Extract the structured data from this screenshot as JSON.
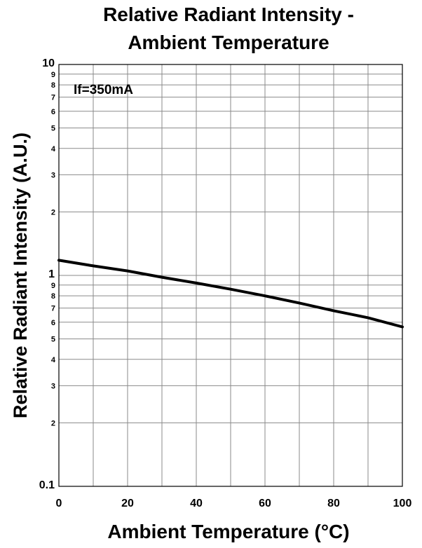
{
  "chart_data": {
    "type": "line",
    "title": [
      "Relative Radiant Intensity -",
      "Ambient Temperature"
    ],
    "xlabel": "Ambient Temperature (°C)",
    "ylabel": "Relative Radiant Intensity (A.U.)",
    "annotation": "If=350mA",
    "xlim": [
      0,
      100
    ],
    "ylim": [
      0.1,
      10
    ],
    "yscale": "log",
    "grid": true,
    "x_ticks": [
      0,
      20,
      40,
      60,
      80,
      100
    ],
    "x_grid": [
      0,
      10,
      20,
      30,
      40,
      50,
      60,
      70,
      80,
      90,
      100
    ],
    "y_major_ticks": [
      {
        "value": 0.1,
        "label": "0.1"
      },
      {
        "value": 1,
        "label": "1"
      },
      {
        "value": 10,
        "label": "10"
      }
    ],
    "y_minor_ticks": [
      {
        "value": 2,
        "label": "2"
      },
      {
        "value": 3,
        "label": "3"
      },
      {
        "value": 4,
        "label": "4"
      },
      {
        "value": 5,
        "label": "5"
      },
      {
        "value": 6,
        "label": "6"
      },
      {
        "value": 7,
        "label": "7"
      },
      {
        "value": 8,
        "label": "8"
      },
      {
        "value": 9,
        "label": "9"
      },
      {
        "value": 0.2,
        "label": "2"
      },
      {
        "value": 0.3,
        "label": "3"
      },
      {
        "value": 0.4,
        "label": "4"
      },
      {
        "value": 0.5,
        "label": "5"
      },
      {
        "value": 0.6,
        "label": "6"
      },
      {
        "value": 0.7,
        "label": "7"
      },
      {
        "value": 0.8,
        "label": "8"
      },
      {
        "value": 0.9,
        "label": "9"
      }
    ],
    "series": [
      {
        "x": [
          0,
          10,
          20,
          30,
          40,
          50,
          60,
          70,
          80,
          90,
          100
        ],
        "y": [
          1.18,
          1.11,
          1.05,
          0.98,
          0.92,
          0.86,
          0.8,
          0.74,
          0.68,
          0.63,
          0.57
        ]
      }
    ]
  }
}
